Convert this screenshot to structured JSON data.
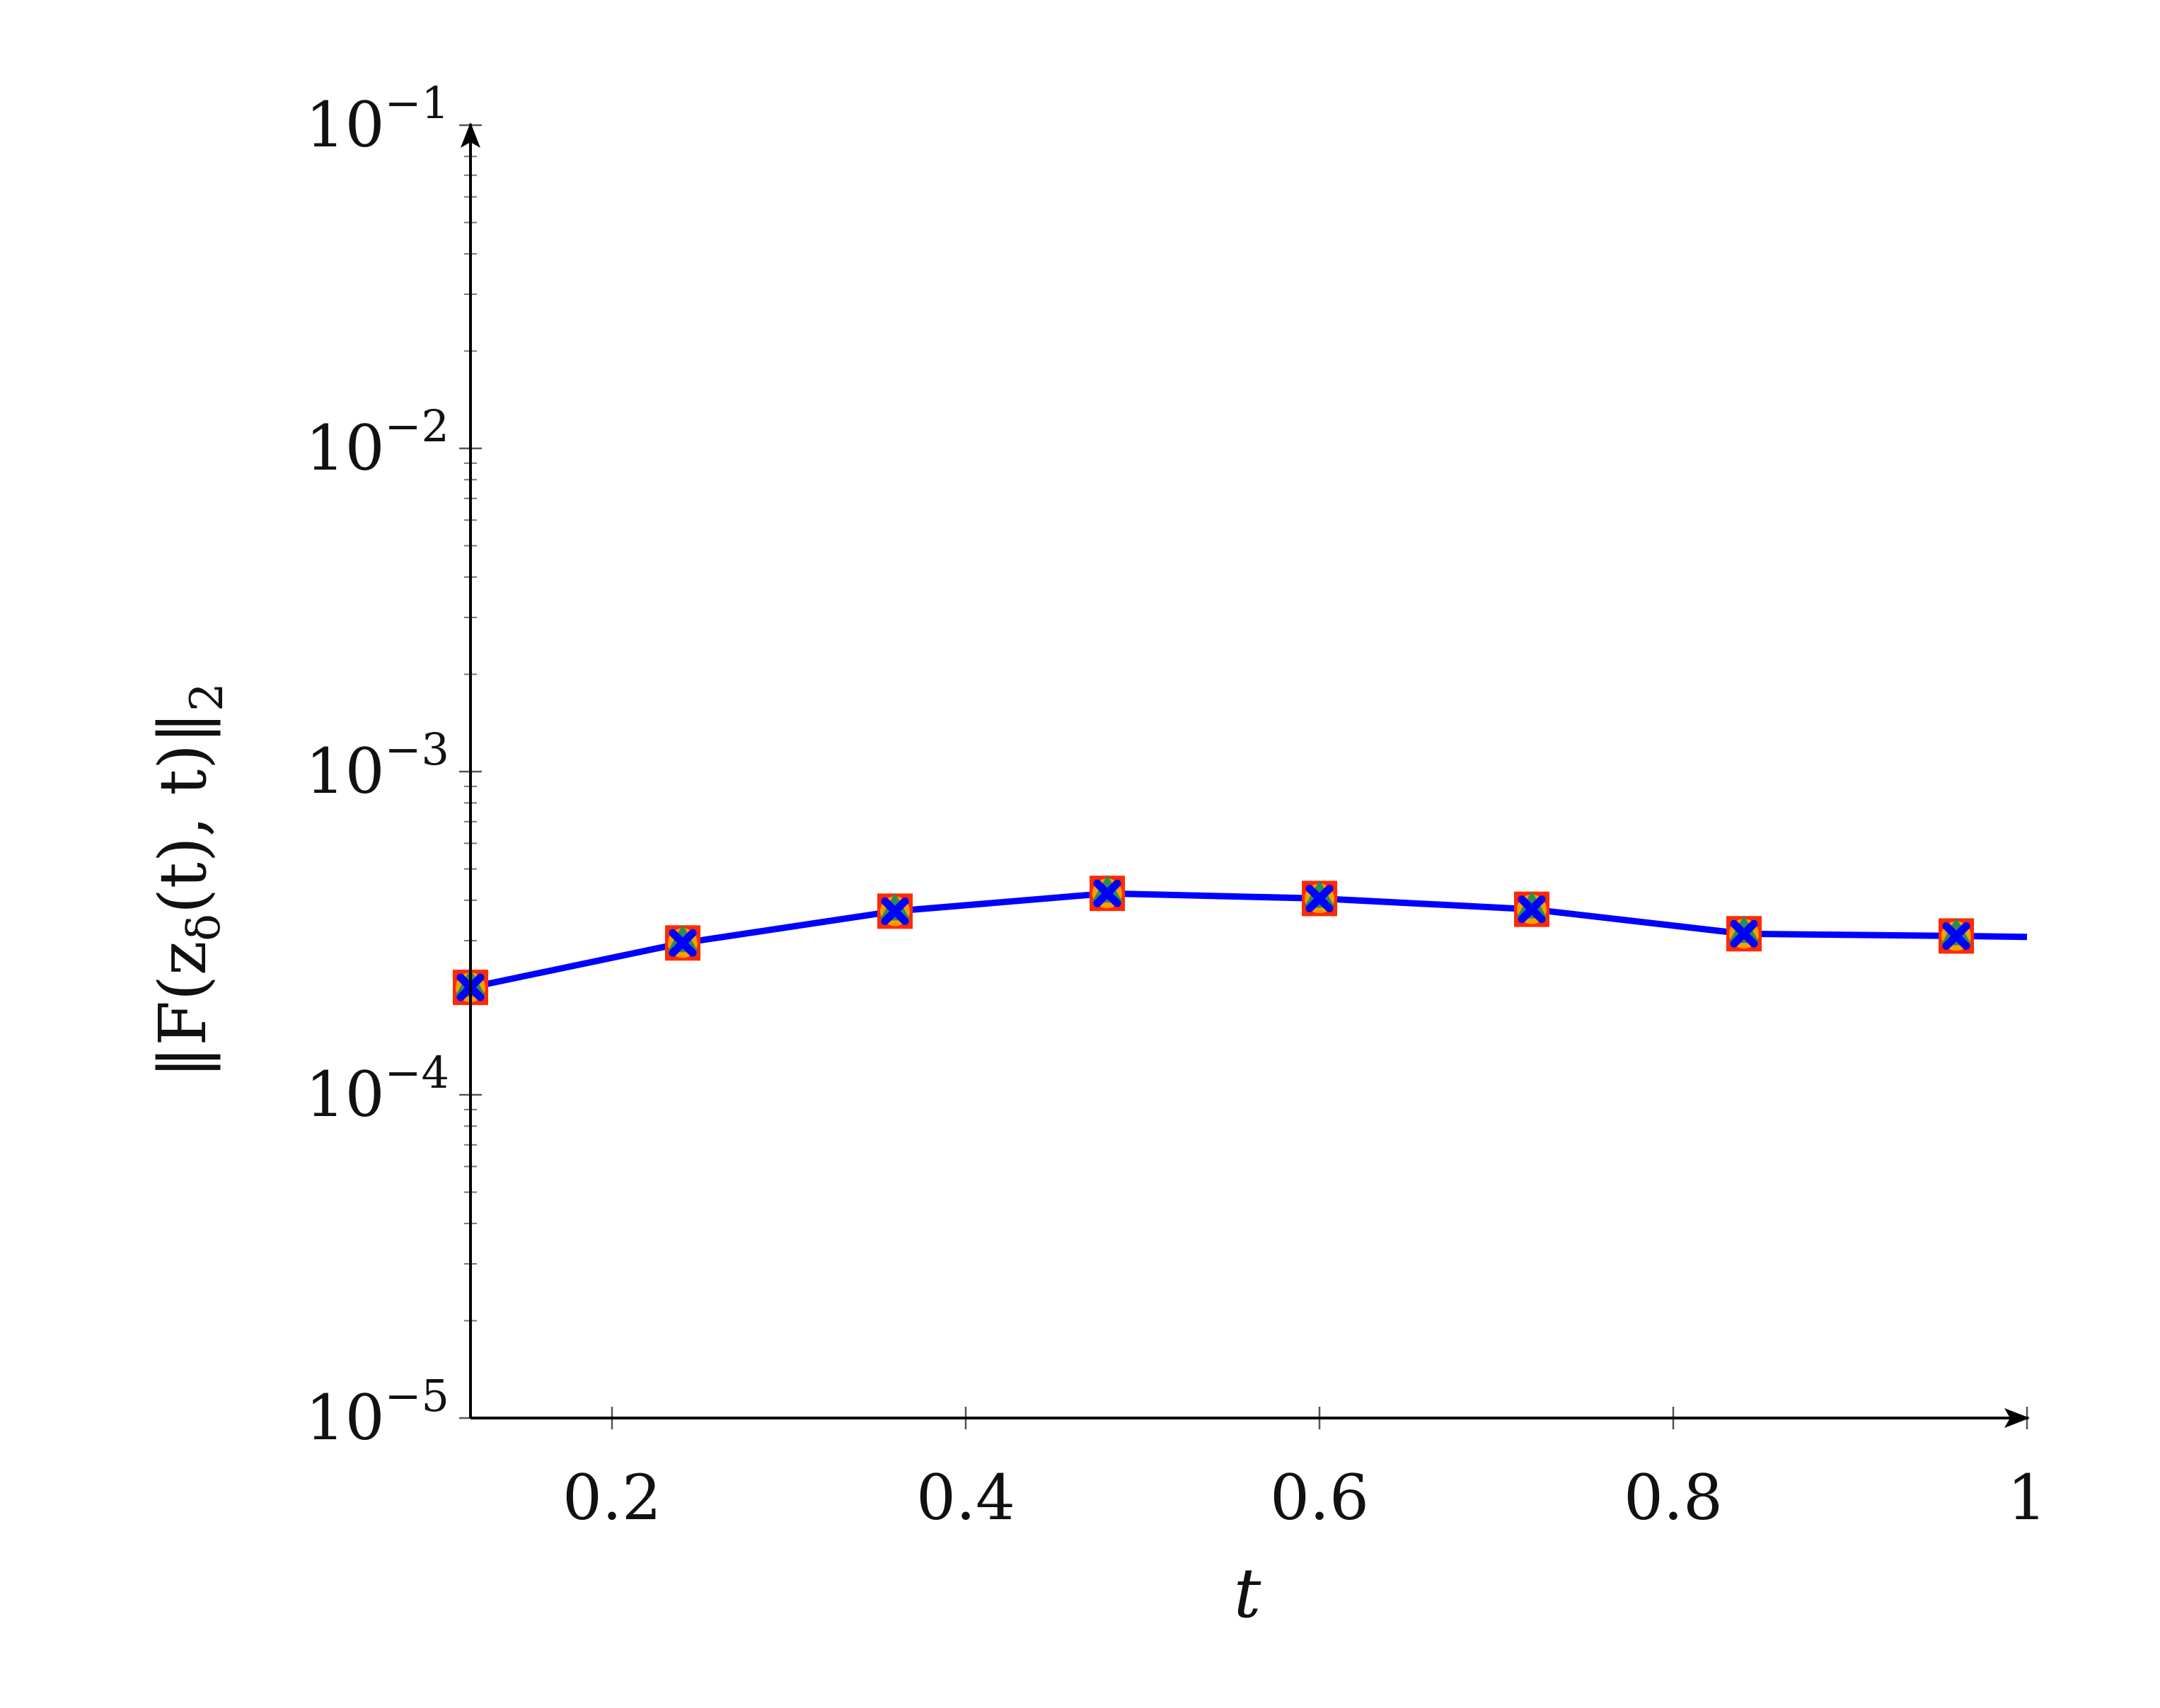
{
  "chart_data": {
    "type": "line",
    "xlabel": "t",
    "ylabel": "‖F(zδ(t), t)‖2",
    "ylabel_parts": {
      "open": "‖F(z",
      "sub": "δ",
      "close": "(t), t)‖",
      "sub2": "2"
    },
    "xlim": [
      0.12,
      1.0
    ],
    "ylim": [
      1e-05,
      0.1
    ],
    "yscale": "log",
    "grid": false,
    "x_ticks": [
      {
        "value": 0.2,
        "label": "0.2"
      },
      {
        "value": 0.4,
        "label": "0.4"
      },
      {
        "value": 0.6,
        "label": "0.6"
      },
      {
        "value": 0.8,
        "label": "0.8"
      },
      {
        "value": 1.0,
        "label": "1"
      }
    ],
    "y_ticks": [
      {
        "value": 1e-05,
        "base": "10",
        "exp": "−5"
      },
      {
        "value": 0.0001,
        "base": "10",
        "exp": "−4"
      },
      {
        "value": 0.001,
        "base": "10",
        "exp": "−3"
      },
      {
        "value": 0.01,
        "base": "10",
        "exp": "−2"
      },
      {
        "value": 0.1,
        "base": "10",
        "exp": "−1"
      }
    ],
    "line": {
      "color": "#0000ff",
      "x": [
        0.12,
        0.24,
        0.36,
        0.48,
        0.6,
        0.72,
        0.84,
        0.96,
        1.0
      ],
      "y": [
        0.000215,
        0.000295,
        0.00037,
        0.00042,
        0.000405,
        0.000375,
        0.000315,
        0.00031,
        0.000308
      ]
    },
    "markers": {
      "x": [
        0.12,
        0.24,
        0.36,
        0.48,
        0.6,
        0.72,
        0.84,
        0.96
      ],
      "y": [
        0.000215,
        0.000295,
        0.00037,
        0.00042,
        0.000405,
        0.000375,
        0.000315,
        0.00031
      ],
      "styles": [
        {
          "shape": "square",
          "color": "#ff2a00"
        },
        {
          "shape": "circle",
          "color": "#ff9d00"
        },
        {
          "shape": "triangle",
          "color": "#2e8b57"
        },
        {
          "shape": "cross",
          "color": "#0000ff"
        }
      ]
    }
  }
}
